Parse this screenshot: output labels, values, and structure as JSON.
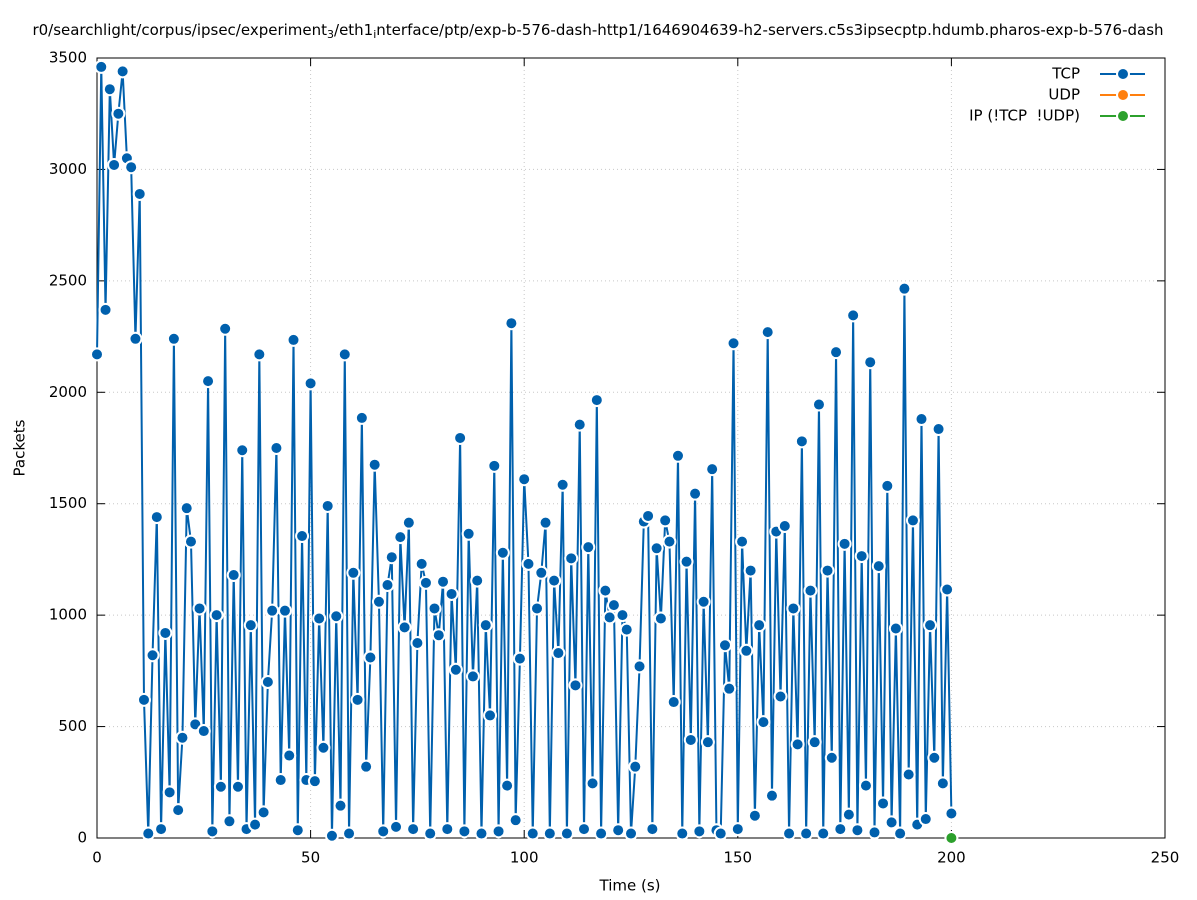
{
  "chart_data": {
    "type": "line",
    "title_parts": [
      "r0/searchlight/corpus/ipsec/experiment",
      "3",
      "/eth1",
      "i",
      "nterface/ptp/exp-b-576-dash-http1/1646904639-h2-servers.c5s3ipsecptp.hdumb.pharos-exp-b-576-dash"
    ],
    "x_label": "Time (s)",
    "y_label": "Packets",
    "xlim": [
      0,
      250
    ],
    "xticks": [
      0,
      50,
      100,
      150,
      200,
      250
    ],
    "ylim": [
      0,
      3500
    ],
    "yticks": [
      0,
      500,
      1000,
      1500,
      2000,
      2500,
      3000,
      3500
    ],
    "grid": true,
    "legend": "top-right",
    "series": [
      {
        "name": "TCP",
        "color": "#0060ad",
        "x": [
          0,
          1,
          2,
          3,
          4,
          5,
          6,
          7,
          8,
          9,
          10,
          11,
          12,
          13,
          14,
          15,
          16,
          17,
          18,
          19,
          20,
          21,
          22,
          23,
          24,
          25,
          26,
          27,
          28,
          29,
          30,
          31,
          32,
          33,
          34,
          35,
          36,
          37,
          38,
          39,
          40,
          41,
          42,
          43,
          44,
          45,
          46,
          47,
          48,
          49,
          50,
          51,
          52,
          53,
          54,
          55,
          56,
          57,
          58,
          59,
          60,
          61,
          62,
          63,
          64,
          65,
          66,
          67,
          68,
          69,
          70,
          71,
          72,
          73,
          74,
          75,
          76,
          77,
          78,
          79,
          80,
          81,
          82,
          83,
          84,
          85,
          86,
          87,
          88,
          89,
          90,
          91,
          92,
          93,
          94,
          95,
          96,
          97,
          98,
          99,
          100,
          101,
          102,
          103,
          104,
          105,
          106,
          107,
          108,
          109,
          110,
          111,
          112,
          113,
          114,
          115,
          116,
          117,
          118,
          119,
          120,
          121,
          122,
          123,
          124,
          125,
          126,
          127,
          128,
          129,
          130,
          131,
          132,
          133,
          134,
          135,
          136,
          137,
          138,
          139,
          140,
          141,
          142,
          143,
          144,
          145,
          146,
          147,
          148,
          149,
          150,
          151,
          152,
          153,
          154,
          155,
          156,
          157,
          158,
          159,
          160,
          161,
          162,
          163,
          164,
          165,
          166,
          167,
          168,
          169,
          170,
          171,
          172,
          173,
          174,
          175,
          176,
          177,
          178,
          179,
          180,
          181,
          182,
          183,
          184,
          185,
          186,
          187,
          188,
          189,
          190,
          191,
          192,
          193,
          194,
          195,
          196,
          197,
          198,
          199,
          200
        ],
        "values": [
          2170,
          3460,
          2370,
          3360,
          3020,
          3250,
          3440,
          3050,
          3010,
          2240,
          2890,
          620,
          20,
          820,
          1440,
          40,
          920,
          205,
          2240,
          125,
          450,
          1480,
          1330,
          510,
          1030,
          480,
          2050,
          30,
          1000,
          230,
          2285,
          75,
          1180,
          230,
          1740,
          40,
          955,
          60,
          2170,
          115,
          700,
          1020,
          1750,
          260,
          1020,
          370,
          2235,
          35,
          1355,
          260,
          2040,
          255,
          985,
          405,
          1490,
          10,
          995,
          145,
          2170,
          20,
          1190,
          620,
          1885,
          320,
          810,
          1675,
          1060,
          30,
          1135,
          1260,
          50,
          1350,
          945,
          1415,
          40,
          875,
          1230,
          1145,
          20,
          1030,
          910,
          1150,
          40,
          1095,
          755,
          1795,
          30,
          1365,
          725,
          1155,
          20,
          955,
          550,
          1670,
          30,
          1280,
          235,
          2310,
          80,
          805,
          1610,
          1230,
          20,
          1030,
          1190,
          1415,
          20,
          1155,
          830,
          1585,
          20,
          1255,
          685,
          1855,
          40,
          1305,
          245,
          1965,
          20,
          1110,
          990,
          1045,
          35,
          1000,
          935,
          20,
          320,
          770,
          1420,
          1445,
          40,
          1300,
          985,
          1425,
          1330,
          610,
          1715,
          20,
          1240,
          440,
          1545,
          30,
          1060,
          430,
          1655,
          35,
          20,
          865,
          670,
          2220,
          40,
          1330,
          840,
          1200,
          100,
          955,
          520,
          2270,
          190,
          1375,
          635,
          1400,
          20,
          1030,
          420,
          1780,
          20,
          1110,
          430,
          1945,
          20,
          1200,
          360,
          2180,
          40,
          1320,
          105,
          2345,
          35,
          1265,
          235,
          2135,
          25,
          1220,
          155,
          1580,
          70,
          940,
          20,
          2465,
          285,
          1425,
          60,
          1880,
          85,
          955,
          360,
          1835,
          245,
          1115,
          110
        ]
      },
      {
        "name": "UDP",
        "color": "#ff7f0e",
        "x": [],
        "values": []
      },
      {
        "name": "IP (!TCP  !UDP)",
        "color": "#2ca02c",
        "x": [
          200
        ],
        "values": [
          0
        ]
      }
    ]
  }
}
